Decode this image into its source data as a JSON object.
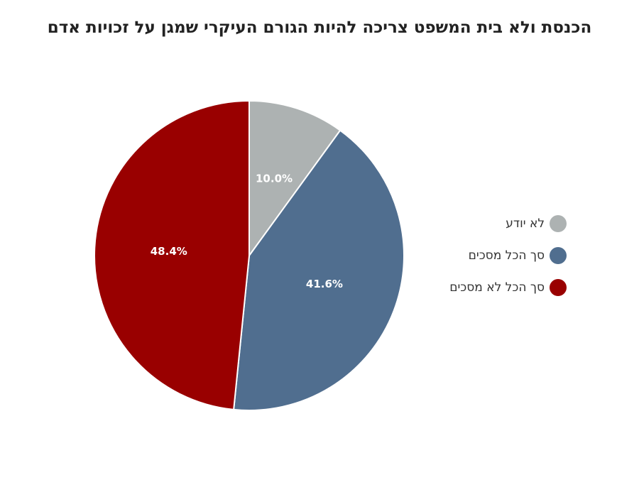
{
  "chart_data": {
    "type": "pie",
    "title": "הכנסת ולא בית המשפט צריכה להיות הגורם העיקרי שמגן על זכויות אדם",
    "slices": [
      {
        "label": "לא יודע",
        "value": 10.0,
        "value_label": "10.0%",
        "color": "#adb2b2"
      },
      {
        "label": "סך הכל מסכים",
        "value": 41.6,
        "value_label": "41.6%",
        "color": "#506e8f"
      },
      {
        "label": "סך הכל לא מסכים",
        "value": 48.4,
        "value_label": "48.4%",
        "color": "#990000"
      }
    ],
    "start_angle": "12 o'clock",
    "direction": "clockwise",
    "legend_position": "right"
  }
}
